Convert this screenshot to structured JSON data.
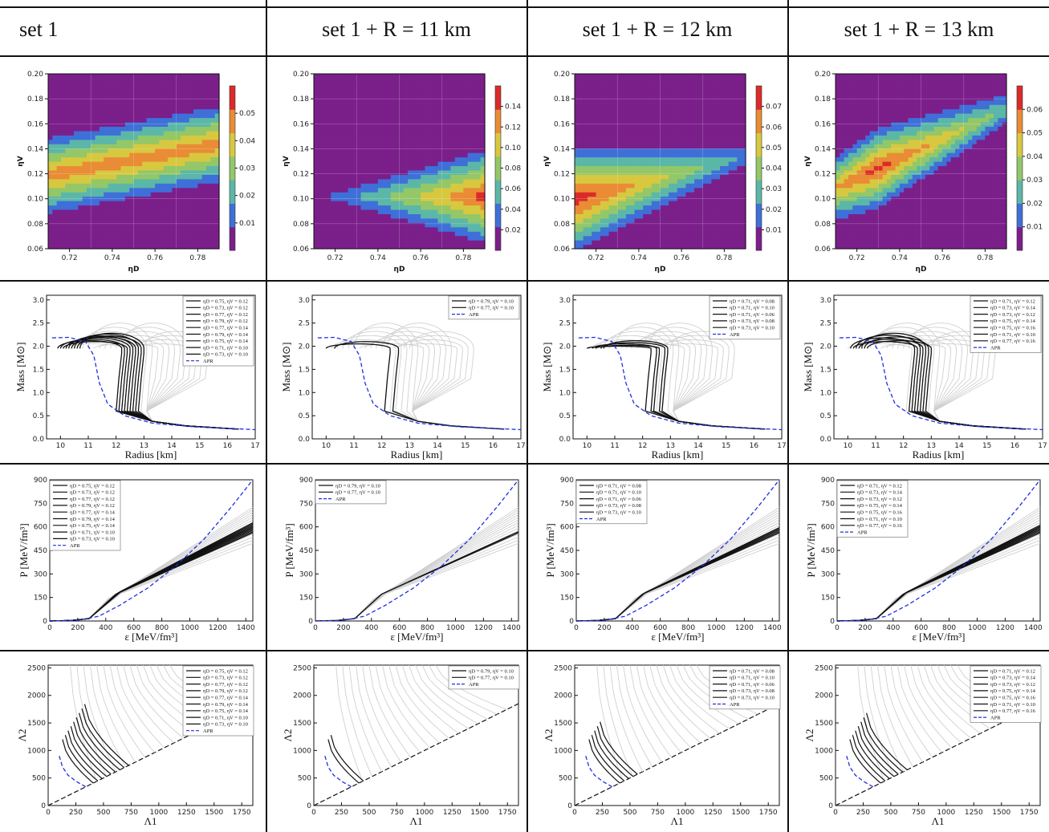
{
  "headers": [
    "set 1",
    "set 1 + R = 11 km",
    "set 1 + R = 12 km",
    "set 1 + R = 13 km"
  ],
  "heatmap_levels": [
    "#7b1f8a",
    "#3f6fd8",
    "#5bb7a8",
    "#93c768",
    "#d7c840",
    "#e98c35",
    "#dc2a2a"
  ],
  "gray_curve": "#d0d0d0",
  "apr_color": "#1f2fe0",
  "chart_data": [
    {
      "type": "heatmap",
      "panel": "set 1",
      "xlabel": "ηD",
      "ylabel": "ηV",
      "xlim": [
        0.71,
        0.79
      ],
      "ylim": [
        0.06,
        0.2
      ],
      "x_ticks": [
        "0.72",
        "0.74",
        "0.76",
        "0.78"
      ],
      "y_ticks": [
        "0.06",
        "0.08",
        "0.10",
        "0.12",
        "0.14",
        "0.16",
        "0.18",
        "0.20"
      ],
      "colorbar_ticks": [
        "0.01",
        "0.02",
        "0.03",
        "0.04",
        "0.05"
      ],
      "colorbar_max": 0.06,
      "peak": {
        "x": 0.75,
        "y": 0.12,
        "value": 0.05
      }
    },
    {
      "type": "heatmap",
      "panel": "set 1 + R = 11 km",
      "xlabel": "ηD",
      "ylabel": "ηV",
      "xlim": [
        0.71,
        0.79
      ],
      "ylim": [
        0.06,
        0.2
      ],
      "x_ticks": [
        "0.72",
        "0.74",
        "0.76",
        "0.78"
      ],
      "y_ticks": [
        "0.06",
        "0.08",
        "0.10",
        "0.12",
        "0.14",
        "0.16",
        "0.18",
        "0.20"
      ],
      "colorbar_ticks": [
        "0.02",
        "0.04",
        "0.06",
        "0.08",
        "0.10",
        "0.12",
        "0.14"
      ],
      "colorbar_max": 0.16,
      "peak": {
        "x": 0.79,
        "y": 0.1,
        "value": 0.15
      }
    },
    {
      "type": "heatmap",
      "panel": "set 1 + R = 12 km",
      "xlabel": "ηD",
      "ylabel": "ηV",
      "xlim": [
        0.71,
        0.79
      ],
      "ylim": [
        0.06,
        0.2
      ],
      "x_ticks": [
        "0.72",
        "0.74",
        "0.76",
        "0.78"
      ],
      "y_ticks": [
        "0.06",
        "0.08",
        "0.10",
        "0.12",
        "0.14",
        "0.16",
        "0.18",
        "0.20"
      ],
      "colorbar_ticks": [
        "0.01",
        "0.02",
        "0.03",
        "0.04",
        "0.05",
        "0.06",
        "0.07"
      ],
      "colorbar_max": 0.08,
      "peak": {
        "x": 0.71,
        "y": 0.08,
        "value": 0.075
      }
    },
    {
      "type": "heatmap",
      "panel": "set 1 + R = 13 km",
      "xlabel": "ηD",
      "ylabel": "ηV",
      "xlim": [
        0.71,
        0.79
      ],
      "ylim": [
        0.06,
        0.2
      ],
      "x_ticks": [
        "0.72",
        "0.74",
        "0.76",
        "0.78"
      ],
      "y_ticks": [
        "0.06",
        "0.08",
        "0.10",
        "0.12",
        "0.14",
        "0.16",
        "0.18",
        "0.20"
      ],
      "colorbar_ticks": [
        "0.01",
        "0.02",
        "0.03",
        "0.04",
        "0.05",
        "0.06"
      ],
      "colorbar_max": 0.07,
      "peak": {
        "x": 0.73,
        "y": 0.14,
        "value": 0.065
      }
    }
  ],
  "mr": {
    "xlabel": "Radius [km]",
    "ylabel": "Mass [M⊙]",
    "xlim": [
      9.5,
      17
    ],
    "ylim": [
      0,
      3.1
    ],
    "x_ticks": [
      "10",
      "11",
      "12",
      "13",
      "14",
      "15",
      "16",
      "17"
    ],
    "y_ticks": [
      "0.0",
      "0.5",
      "1.0",
      "1.5",
      "2.0",
      "2.5",
      "3.0"
    ]
  },
  "pe": {
    "xlabel": "ε [MeV/fm³]",
    "ylabel": "P [MeV/fm³]",
    "xlim": [
      0,
      1450
    ],
    "ylim": [
      0,
      900
    ],
    "x_ticks": [
      "0",
      "200",
      "400",
      "600",
      "800",
      "1000",
      "1200",
      "1400"
    ],
    "y_ticks": [
      "0",
      "150",
      "300",
      "450",
      "600",
      "750",
      "900"
    ]
  },
  "tidal": {
    "xlabel": "Λ1",
    "ylabel": "Λ2",
    "xlim": [
      0,
      1850
    ],
    "ylim": [
      0,
      2550
    ],
    "x_ticks": [
      "0",
      "250",
      "500",
      "750",
      "1000",
      "1250",
      "1500",
      "1750"
    ],
    "y_ticks": [
      "0",
      "500",
      "1000",
      "1500",
      "2000",
      "2500"
    ]
  },
  "legends": [
    [
      "ηD = 0.75, ηV = 0.12",
      "ηD = 0.73, ηV = 0.12",
      "ηD = 0.77, ηV = 0.12",
      "ηD = 0.79, ηV = 0.12",
      "ηD = 0.77, ηV = 0.14",
      "ηD = 0.79, ηV = 0.14",
      "ηD = 0.75, ηV = 0.14",
      "ηD = 0.71, ηV = 0.10",
      "ηD = 0.73, ηV = 0.10",
      "APR"
    ],
    [
      "ηD = 0.79, ηV = 0.10",
      "ηD = 0.77, ηV = 0.10",
      "APR"
    ],
    [
      "ηD = 0.71, ηV = 0.08",
      "ηD = 0.71, ηV = 0.10",
      "ηD = 0.71, ηV = 0.06",
      "ηD = 0.73, ηV = 0.08",
      "ηD = 0.73, ηV = 0.10",
      "APR"
    ],
    [
      "ηD = 0.71, ηV = 0.12",
      "ηD = 0.73, ηV = 0.14",
      "ηD = 0.73, ηV = 0.12",
      "ηD = 0.75, ηV = 0.14",
      "ηD = 0.75, ηV = 0.16",
      "ηD = 0.71, ηV = 0.10",
      "ηD = 0.77, ηV = 0.16",
      "APR"
    ]
  ],
  "black_curves": [
    [
      {
        "R": 12.6,
        "M": 2.22
      },
      {
        "R": 12.8,
        "M": 2.26
      },
      {
        "R": 12.5,
        "M": 2.18
      },
      {
        "R": 13.0,
        "M": 2.28
      },
      {
        "R": 12.2,
        "M": 2.12
      },
      {
        "R": 12.9,
        "M": 2.22
      },
      {
        "R": 12.7,
        "M": 2.2
      },
      {
        "R": 12.3,
        "M": 2.15
      },
      {
        "R": 12.4,
        "M": 2.1
      }
    ],
    [
      {
        "R": 12.3,
        "M": 2.05
      },
      {
        "R": 12.6,
        "M": 2.1
      }
    ],
    [
      {
        "R": 12.5,
        "M": 2.05
      },
      {
        "R": 12.8,
        "M": 2.08
      },
      {
        "R": 12.3,
        "M": 2.0
      },
      {
        "R": 12.9,
        "M": 2.12
      },
      {
        "R": 12.6,
        "M": 2.02
      }
    ],
    [
      {
        "R": 12.8,
        "M": 2.28
      },
      {
        "R": 12.6,
        "M": 2.24
      },
      {
        "R": 12.9,
        "M": 2.2
      },
      {
        "R": 12.4,
        "M": 2.18
      },
      {
        "R": 12.7,
        "M": 2.15
      },
      {
        "R": 13.0,
        "M": 2.12
      },
      {
        "R": 12.5,
        "M": 2.1
      }
    ]
  ]
}
